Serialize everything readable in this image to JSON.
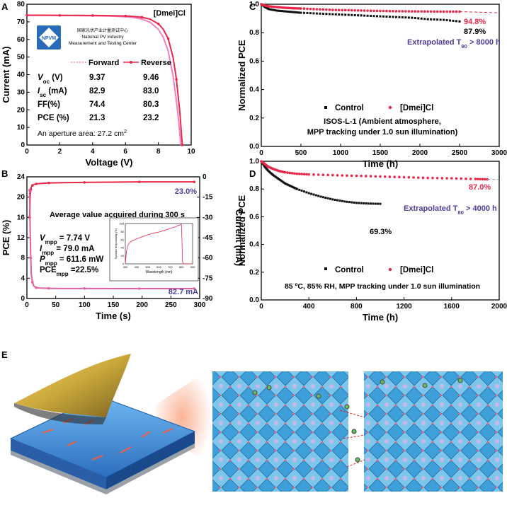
{
  "panel_labels": {
    "A": "A",
    "B": "B",
    "C": "C",
    "D": "D",
    "E": "E"
  },
  "chart_data": [
    {
      "id": "A",
      "type": "line",
      "xlabel": "Voltage (V)",
      "ylabel": "Current (mA)",
      "xlim": [
        0,
        10
      ],
      "ylim": [
        0,
        90
      ],
      "xticks": [
        "0",
        "2",
        "4",
        "6",
        "8",
        "10"
      ],
      "yticks": [
        "0",
        "10",
        "20",
        "30",
        "40",
        "50",
        "60",
        "70",
        "80"
      ],
      "tag": "[Dmei]Cl",
      "logo": {
        "text": "NPVM",
        "line1": "国家光伏产业计量测试中心",
        "line2": "National PV Industry",
        "line3": "Measurement and Testing Center"
      },
      "series": [
        {
          "name": "Forward",
          "color": "#f080c0",
          "x": [
            0,
            1,
            2,
            3,
            4,
            5,
            6,
            6.5,
            7,
            7.5,
            8,
            8.3,
            8.6,
            8.9,
            9.1,
            9.25,
            9.37
          ],
          "y": [
            82.9,
            82.9,
            82.8,
            82.7,
            82.6,
            82.4,
            82.0,
            81.5,
            80.5,
            78.5,
            74,
            69,
            60,
            44,
            28,
            14,
            0
          ]
        },
        {
          "name": "Reverse",
          "color": "#e8284a",
          "x": [
            0,
            1,
            2,
            3,
            4,
            5,
            6,
            6.5,
            7,
            7.5,
            8,
            8.3,
            8.6,
            8.9,
            9.1,
            9.3,
            9.46
          ],
          "y": [
            83.0,
            83.0,
            82.9,
            82.9,
            82.8,
            82.7,
            82.5,
            82.2,
            81.7,
            80.5,
            77.5,
            74,
            68,
            56,
            42,
            22,
            0
          ]
        }
      ],
      "table": {
        "rows": [
          {
            "label": "V",
            "sub": "oc",
            "unit": " (V)",
            "fwd": "9.37",
            "rev": "9.46"
          },
          {
            "label": "I",
            "sub": "sc",
            "unit": " (mA)",
            "fwd": "82.9",
            "rev": "83.0"
          },
          {
            "label": "FF(%)",
            "sub": "",
            "unit": "",
            "fwd": "74.4",
            "rev": "80.3"
          },
          {
            "label": "PCE (%)",
            "sub": "",
            "unit": "",
            "fwd": "21.3",
            "rev": "23.2"
          }
        ],
        "area_prefix": "An aperture area: 27.2 cm",
        "area_sup": "2"
      }
    },
    {
      "id": "B",
      "type": "line",
      "xlabel": "Time (s)",
      "ylabel": "PCE (%)",
      "ylabel_right": "Current (mA)",
      "xlim": [
        -5,
        310
      ],
      "ylim": [
        0,
        24
      ],
      "ylim_right": [
        -90,
        0
      ],
      "xticks": [
        "0",
        "50",
        "100",
        "150",
        "200",
        "250",
        "300"
      ],
      "yticks": [
        "0",
        "4",
        "8",
        "12",
        "16",
        "20",
        "24"
      ],
      "yticks_right": [
        "-90",
        "-75",
        "-60",
        "-45",
        "-30",
        "-15",
        "0"
      ],
      "pce_label": "23.0%",
      "current_label": "82.7 mA",
      "avg_text": "Average value acquired during 300 s",
      "params": [
        {
          "sym": "V",
          "sub": "mpp",
          "val": "= 7.74 V"
        },
        {
          "sym": "I",
          "sub": "mpp",
          "val": "= 79.0 mA"
        },
        {
          "sym": "P",
          "sub": "mpp",
          "val": "= 611.6 mW"
        },
        {
          "sym": "PCE",
          "sub": "mpp",
          "val": "=22.5%"
        }
      ],
      "series": [
        {
          "name": "PCE",
          "color": "#e8284a",
          "x": [
            0,
            1,
            2,
            3,
            5,
            8,
            12,
            20,
            35,
            60,
            100,
            150,
            200,
            250,
            300
          ],
          "y": [
            16,
            20,
            21.5,
            22,
            22.3,
            22.5,
            22.6,
            22.7,
            22.8,
            22.85,
            22.9,
            22.95,
            23.0,
            23.0,
            23.0
          ]
        },
        {
          "name": "Current",
          "color": "#e060a0",
          "x": [
            0,
            1,
            2,
            3,
            5,
            8,
            12,
            20,
            35,
            60,
            100,
            150,
            200,
            250,
            300
          ],
          "y": [
            -10,
            -40,
            -60,
            -72,
            -78,
            -81,
            -82,
            -82.3,
            -82.5,
            -82.6,
            -82.6,
            -82.7,
            -82.7,
            -82.7,
            -82.7
          ]
        }
      ],
      "inset": {
        "ylabel": "Spectra responsivity (%)",
        "xlabel": "Wavelength (nm)",
        "xlim": [
          300,
          900
        ],
        "ylim": [
          0,
          100
        ],
        "xticks": [
          "300",
          "400",
          "500",
          "600",
          "700",
          "800",
          "900"
        ],
        "yticks": [
          "0",
          "20",
          "40",
          "60",
          "80",
          "100"
        ],
        "x": [
          300,
          310,
          320,
          340,
          360,
          400,
          450,
          500,
          550,
          600,
          650,
          700,
          750,
          770,
          790,
          800,
          805,
          810,
          820,
          900
        ],
        "y": [
          0,
          30,
          45,
          53,
          57,
          62,
          67,
          72,
          76,
          79,
          83,
          88,
          92,
          95,
          97,
          98,
          60,
          5,
          0,
          0
        ]
      }
    },
    {
      "id": "C",
      "type": "scatter",
      "xlabel": "Time (h)",
      "ylabel": "Normalized PCE",
      "xlim": [
        0,
        3000
      ],
      "ylim": [
        0,
        1.0
      ],
      "xticks": [
        "0",
        "500",
        "1000",
        "1500",
        "2000",
        "2500",
        "3000"
      ],
      "yticks": [
        "0.0",
        "0.2",
        "0.4",
        "0.6",
        "0.8",
        "1.0"
      ],
      "series": [
        {
          "name": "Control",
          "color": "#111111",
          "x": [
            0,
            50,
            100,
            200,
            300,
            400,
            500,
            700,
            900,
            1100,
            1300,
            1500,
            1700,
            1900,
            2100,
            2300,
            2500
          ],
          "y": [
            1.0,
            0.98,
            0.965,
            0.955,
            0.95,
            0.945,
            0.94,
            0.935,
            0.93,
            0.925,
            0.92,
            0.915,
            0.91,
            0.905,
            0.895,
            0.89,
            0.879
          ]
        },
        {
          "name": "[Dmei]Cl",
          "color": "#e8284a",
          "x": [
            0,
            50,
            100,
            200,
            300,
            400,
            500,
            700,
            900,
            1100,
            1300,
            1500,
            1700,
            1900,
            2100,
            2300,
            2500
          ],
          "y": [
            1.0,
            0.99,
            0.985,
            0.98,
            0.975,
            0.972,
            0.97,
            0.965,
            0.96,
            0.958,
            0.955,
            0.953,
            0.951,
            0.95,
            0.949,
            0.948,
            0.948
          ]
        }
      ],
      "end_labels": [
        "94.8%",
        "87.9%"
      ],
      "extrap_prefix": "Extrapolated T",
      "extrap_sub": "90",
      "extrap_suffix": " > 8000 h",
      "note_line1": "ISOS-L-1 (Ambient atmosphere,",
      "note_line2": "MPP tracking under 1.0 sun illumination)"
    },
    {
      "id": "D",
      "type": "scatter",
      "xlabel": "Time (h)",
      "ylabel": "Normalized PCE",
      "xlim": [
        0,
        2000
      ],
      "ylim": [
        0,
        1.0
      ],
      "xticks": [
        "0",
        "400",
        "800",
        "1200",
        "1600",
        "2000"
      ],
      "yticks": [
        "0.0",
        "0.2",
        "0.4",
        "0.6",
        "0.8",
        "1.0"
      ],
      "series": [
        {
          "name": "Control",
          "color": "#111111",
          "x": [
            0,
            30,
            60,
            100,
            150,
            200,
            250,
            300,
            400,
            500,
            600,
            700,
            800,
            900,
            1000
          ],
          "y": [
            1.0,
            0.96,
            0.93,
            0.9,
            0.87,
            0.84,
            0.82,
            0.8,
            0.77,
            0.745,
            0.725,
            0.71,
            0.7,
            0.695,
            0.693
          ]
        },
        {
          "name": "[Dmei]Cl",
          "color": "#e8284a",
          "x": [
            0,
            30,
            60,
            100,
            150,
            200,
            300,
            400,
            600,
            800,
            1000,
            1200,
            1400,
            1600,
            1800,
            1900
          ],
          "y": [
            1.0,
            0.98,
            0.96,
            0.945,
            0.93,
            0.92,
            0.91,
            0.905,
            0.9,
            0.895,
            0.89,
            0.885,
            0.88,
            0.877,
            0.872,
            0.87
          ]
        }
      ],
      "end_labels": [
        "87.0%",
        "69.3%"
      ],
      "extrap_prefix": "Extrapolated T",
      "extrap_sub": "80",
      "extrap_suffix": " > 4000 h",
      "note_line1": "85 ºC, 85% RH, MPP tracking under 1.0 sun illumination"
    }
  ],
  "colors": {
    "accent_red": "#e8284a",
    "pink": "#f080c0",
    "blue_note": "#4a3f9a",
    "crystal": "#4aaee0"
  }
}
